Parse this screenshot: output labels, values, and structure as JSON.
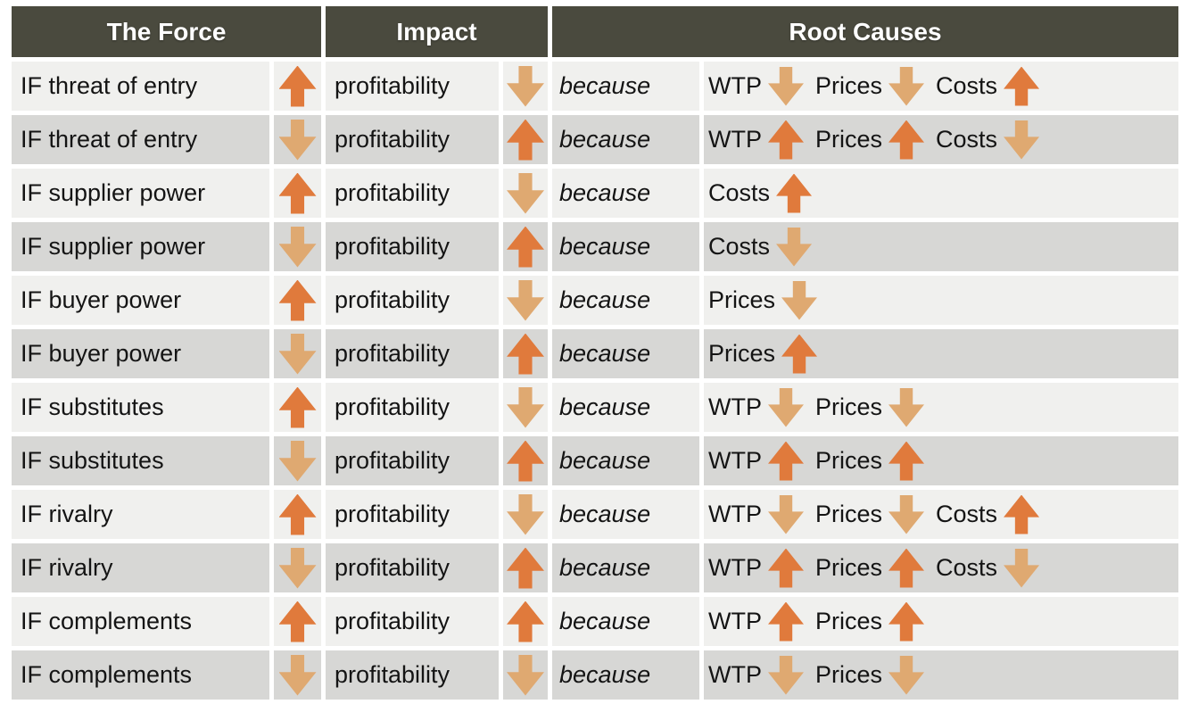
{
  "colors": {
    "header_bg": "#4a4a3e",
    "row_light": "#f0f0ee",
    "row_dark": "#d7d7d5",
    "arrow_up": "#e07a3c",
    "arrow_down": "#dfa971",
    "header_text": "#ffffff",
    "body_text": "#141414"
  },
  "chart_data": {
    "type": "table",
    "columns": [
      "The Force",
      "Impact",
      "Root Causes"
    ],
    "because_label": "because",
    "rows": [
      {
        "force": "IF threat of entry",
        "force_dir": "up",
        "impact": "profitability",
        "impact_dir": "down",
        "causes": [
          {
            "label": "WTP",
            "dir": "down"
          },
          {
            "label": "Prices",
            "dir": "down"
          },
          {
            "label": "Costs",
            "dir": "up"
          }
        ]
      },
      {
        "force": "IF threat of entry",
        "force_dir": "down",
        "impact": "profitability",
        "impact_dir": "up",
        "causes": [
          {
            "label": "WTP",
            "dir": "up"
          },
          {
            "label": "Prices",
            "dir": "up"
          },
          {
            "label": "Costs",
            "dir": "down"
          }
        ]
      },
      {
        "force": "IF supplier power",
        "force_dir": "up",
        "impact": "profitability",
        "impact_dir": "down",
        "causes": [
          {
            "label": "Costs",
            "dir": "up"
          }
        ]
      },
      {
        "force": "IF supplier power",
        "force_dir": "down",
        "impact": "profitability",
        "impact_dir": "up",
        "causes": [
          {
            "label": "Costs",
            "dir": "down"
          }
        ]
      },
      {
        "force": "IF buyer power",
        "force_dir": "up",
        "impact": "profitability",
        "impact_dir": "down",
        "causes": [
          {
            "label": "Prices",
            "dir": "down"
          }
        ]
      },
      {
        "force": "IF buyer power",
        "force_dir": "down",
        "impact": "profitability",
        "impact_dir": "up",
        "causes": [
          {
            "label": "Prices",
            "dir": "up"
          }
        ]
      },
      {
        "force": "IF substitutes",
        "force_dir": "up",
        "impact": "profitability",
        "impact_dir": "down",
        "causes": [
          {
            "label": "WTP",
            "dir": "down"
          },
          {
            "label": "Prices",
            "dir": "down"
          }
        ]
      },
      {
        "force": "IF substitutes",
        "force_dir": "down",
        "impact": "profitability",
        "impact_dir": "up",
        "causes": [
          {
            "label": "WTP",
            "dir": "up"
          },
          {
            "label": "Prices",
            "dir": "up"
          }
        ]
      },
      {
        "force": "IF rivalry",
        "force_dir": "up",
        "impact": "profitability",
        "impact_dir": "down",
        "causes": [
          {
            "label": "WTP",
            "dir": "down"
          },
          {
            "label": "Prices",
            "dir": "down"
          },
          {
            "label": "Costs",
            "dir": "up"
          }
        ]
      },
      {
        "force": "IF rivalry",
        "force_dir": "down",
        "impact": "profitability",
        "impact_dir": "up",
        "causes": [
          {
            "label": "WTP",
            "dir": "up"
          },
          {
            "label": "Prices",
            "dir": "up"
          },
          {
            "label": "Costs",
            "dir": "down"
          }
        ]
      },
      {
        "force": "IF complements",
        "force_dir": "up",
        "impact": "profitability",
        "impact_dir": "up",
        "causes": [
          {
            "label": "WTP",
            "dir": "up"
          },
          {
            "label": "Prices",
            "dir": "up"
          }
        ]
      },
      {
        "force": "IF complements",
        "force_dir": "down",
        "impact": "profitability",
        "impact_dir": "down",
        "causes": [
          {
            "label": "WTP",
            "dir": "down"
          },
          {
            "label": "Prices",
            "dir": "down"
          }
        ]
      }
    ]
  }
}
